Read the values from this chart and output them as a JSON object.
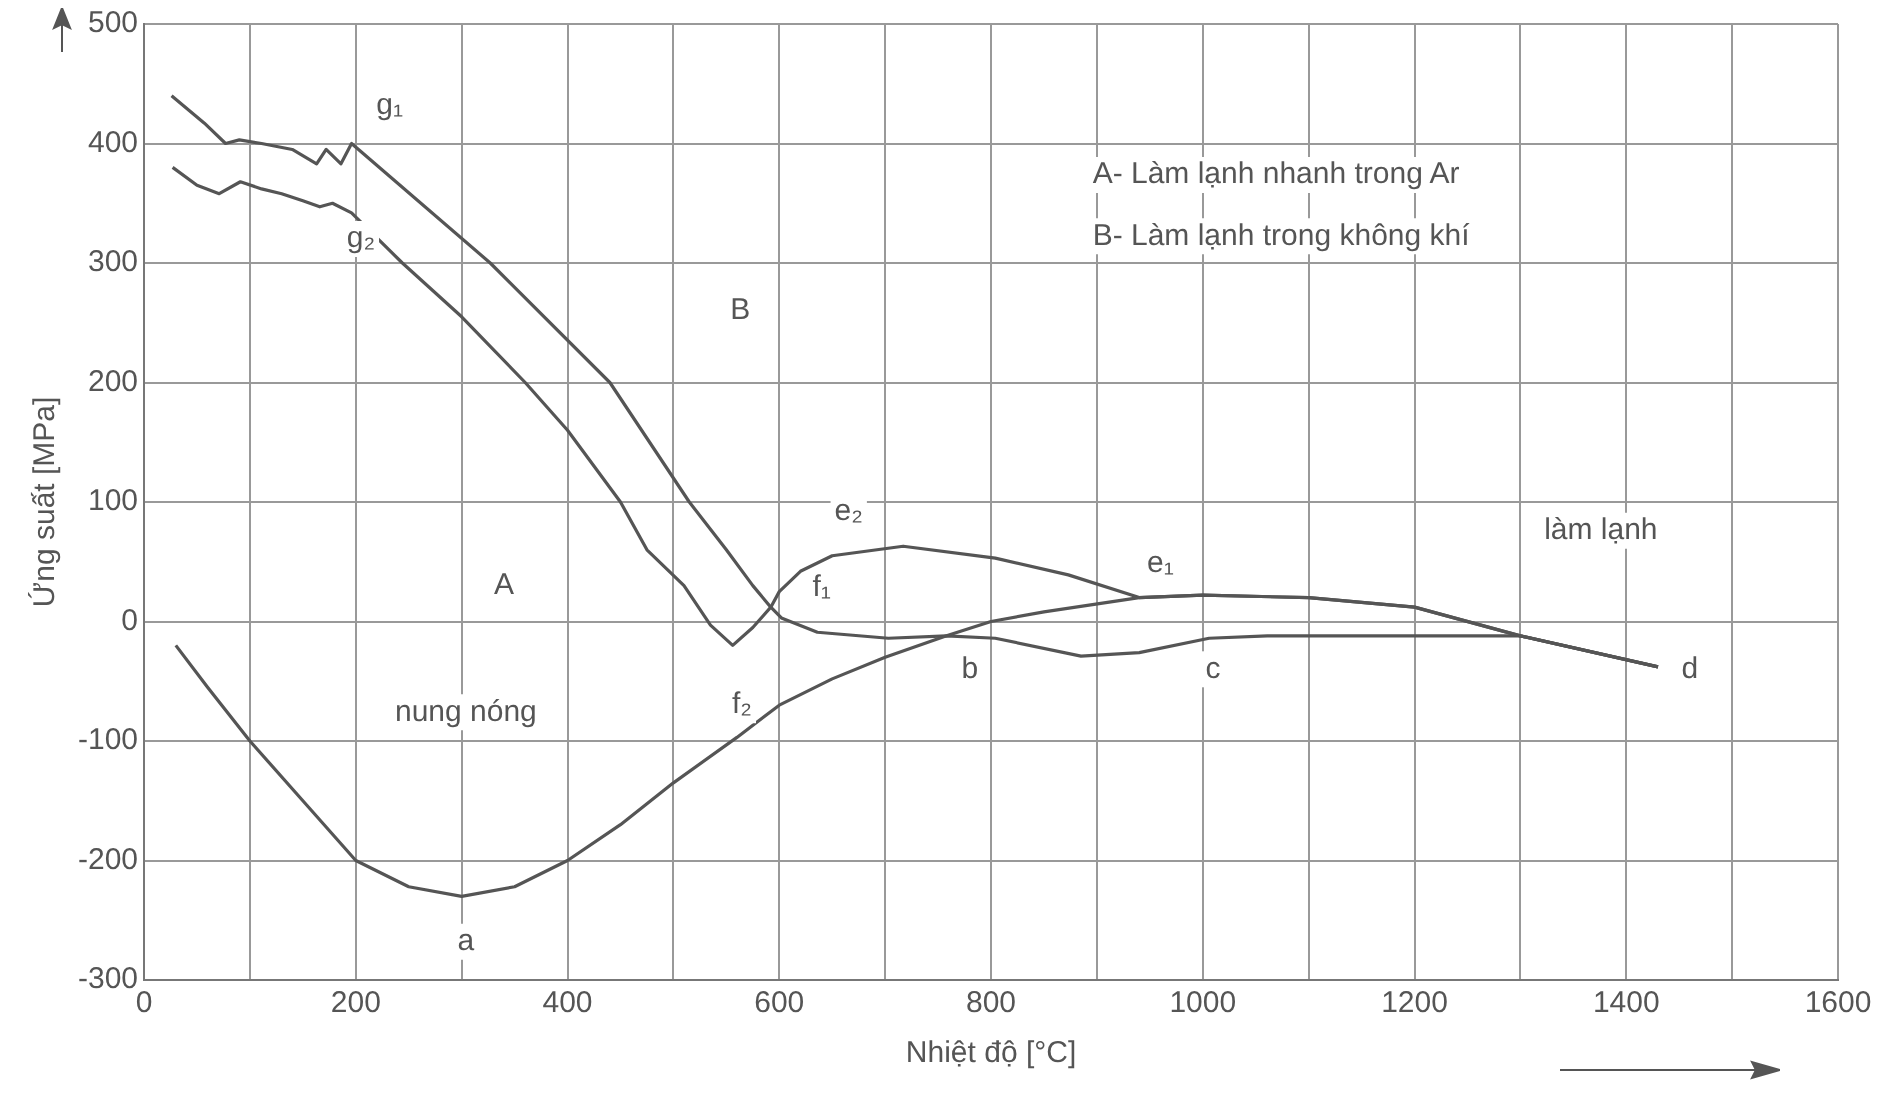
{
  "chart_data": {
    "type": "line",
    "xlabel": "Nhiệt độ [°C]",
    "ylabel": "Ứng suất [MPa]",
    "xlim": [
      0,
      1600
    ],
    "ylim": [
      -300,
      500
    ],
    "xticks": [
      0,
      {
        "value": 100,
        "label": null
      },
      200,
      {
        "value": 300,
        "label": null
      },
      400,
      {
        "value": 500,
        "label": null
      },
      600,
      {
        "value": 700,
        "label": null
      },
      800,
      {
        "value": 900,
        "label": null
      },
      1000,
      {
        "value": 1100,
        "label": null
      },
      1200,
      {
        "value": 1300,
        "label": null
      },
      1400,
      {
        "value": 1500,
        "label": null
      },
      1600
    ],
    "yticks": [
      -300,
      -200,
      -100,
      0,
      100,
      200,
      300,
      400,
      500
    ],
    "grid": true,
    "legend": false,
    "marker": "none",
    "line_style": "solid",
    "series": [
      {
        "color": "#555555",
        "x": [
          30,
          60,
          100,
          150,
          200,
          250,
          300,
          350,
          400,
          450,
          500,
          560,
          600,
          650,
          700,
          758,
          800,
          850,
          940,
          1000,
          1100,
          1200,
          1300,
          1430
        ],
        "values": [
          -20,
          -55,
          -100,
          -150,
          -200,
          -222,
          -230,
          -222,
          -200,
          -170,
          -135,
          -97,
          -70,
          -48,
          -30,
          -12,
          0,
          8,
          20,
          22,
          20,
          12,
          -12,
          -38
        ]
      },
      {
        "color": "#555555",
        "x": [
          1430,
          1300,
          1200,
          1100,
          1000,
          940,
          873,
          804,
          717,
          650,
          620,
          600,
          592,
          575,
          556,
          535,
          510,
          475,
          450,
          400,
          360,
          300,
          244,
          196,
          178,
          166,
          150,
          130,
          111,
          91,
          71,
          50,
          27
        ],
        "values": [
          -38,
          -12,
          12,
          20,
          22,
          20,
          39,
          53,
          63,
          55,
          42,
          25,
          12,
          -5,
          -20,
          -3,
          30,
          60,
          100,
          160,
          200,
          255,
          300,
          342,
          350,
          347,
          352,
          358,
          362,
          368,
          358,
          365,
          380
        ]
      },
      {
        "color": "#555555",
        "x": [
          1430,
          1300,
          1200,
          1100,
          1061,
          1006,
          940,
          885,
          804,
          758,
          703,
          636,
          602,
          592,
          575,
          550,
          515,
          440,
          327,
          196,
          186,
          172,
          163,
          140,
          111,
          90,
          77,
          57,
          26
        ],
        "values": [
          -38,
          -12,
          -12,
          -12,
          -12,
          -14,
          -26,
          -29,
          -14,
          -12,
          -14,
          -9,
          3,
          12,
          30,
          60,
          100,
          200,
          300,
          400,
          383,
          395,
          383,
          395,
          400,
          403,
          400,
          417,
          440
        ]
      }
    ],
    "annotations": [
      "A- Làm lạnh nhanh trong Ar",
      "B- Làm lạnh trong không khí",
      "g₁",
      "g₂",
      "B",
      "A",
      "e₂",
      "f₁",
      "e₁",
      "f₂",
      "a",
      "b",
      "c",
      "d",
      "nung nóng",
      "làm lạnh"
    ]
  }
}
